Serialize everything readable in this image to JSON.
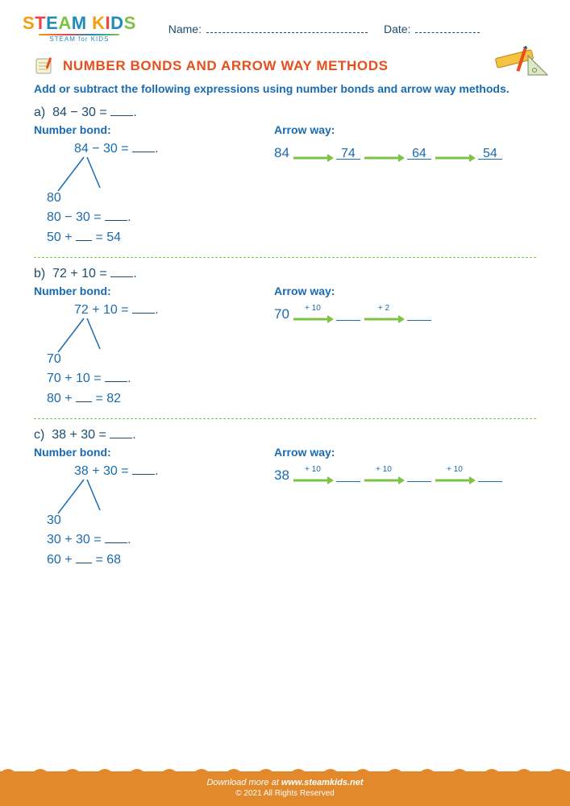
{
  "header": {
    "logo_letters": [
      "S",
      "T",
      "E",
      "A",
      "M",
      " K",
      "I",
      "D",
      "S"
    ],
    "logo_sub": "STEAM for KIDS",
    "name_label": "Name:",
    "date_label": "Date:"
  },
  "title": "NUMBER BONDS AND ARROW WAY METHODS",
  "instructions": "Add or subtract the following expressions using number bonds and arrow way methods.",
  "labels": {
    "number_bond": "Number bond:",
    "arrow_way": "Arrow way:"
  },
  "colors": {
    "accent_blue": "#1a6bb0",
    "dark_blue": "#1a4d6f",
    "orange": "#e94f1d",
    "green_arrow": "#7cc243",
    "footer_bg": "#e28a2b"
  },
  "problems": [
    {
      "letter": "a)",
      "main_expr": "84 − 30 =",
      "bond_expr": "84 − 30 =",
      "bond_leaf": "80",
      "bond_steps": [
        {
          "pre": "80 − 30 =",
          "blank": true,
          "post": "."
        },
        {
          "pre": "50 +",
          "blank_sm": true,
          "post": "= 54"
        }
      ],
      "arrow": {
        "start": "84",
        "steps": [
          {
            "label": "",
            "value": "74"
          },
          {
            "label": "",
            "value": "64"
          },
          {
            "label": "",
            "value": "54"
          }
        ]
      }
    },
    {
      "letter": "b)",
      "main_expr": "72 + 10 =",
      "bond_expr": "72 + 10 =",
      "bond_leaf": "70",
      "bond_steps": [
        {
          "pre": "70 + 10 =",
          "blank": true,
          "post": "."
        },
        {
          "pre": "80 +",
          "blank_sm": true,
          "post": "= 82"
        }
      ],
      "arrow": {
        "start": "70",
        "steps": [
          {
            "label": "+ 10",
            "value": ""
          },
          {
            "label": "+ 2",
            "value": ""
          }
        ]
      }
    },
    {
      "letter": "c)",
      "main_expr": "38 + 30 =",
      "bond_expr": "38 + 30 =",
      "bond_leaf": "30",
      "bond_steps": [
        {
          "pre": "30 + 30 =",
          "blank": true,
          "post": "."
        },
        {
          "pre": "60 +",
          "blank_sm": true,
          "post": "= 68"
        }
      ],
      "arrow": {
        "start": "38",
        "steps": [
          {
            "label": "+ 10",
            "value": ""
          },
          {
            "label": "+ 10",
            "value": ""
          },
          {
            "label": "+ 10",
            "value": ""
          }
        ]
      }
    }
  ],
  "footer": {
    "line1_pre": "Download more at ",
    "link": "www.steamkids.net",
    "line2": "© 2021 All Rights Reserved"
  }
}
